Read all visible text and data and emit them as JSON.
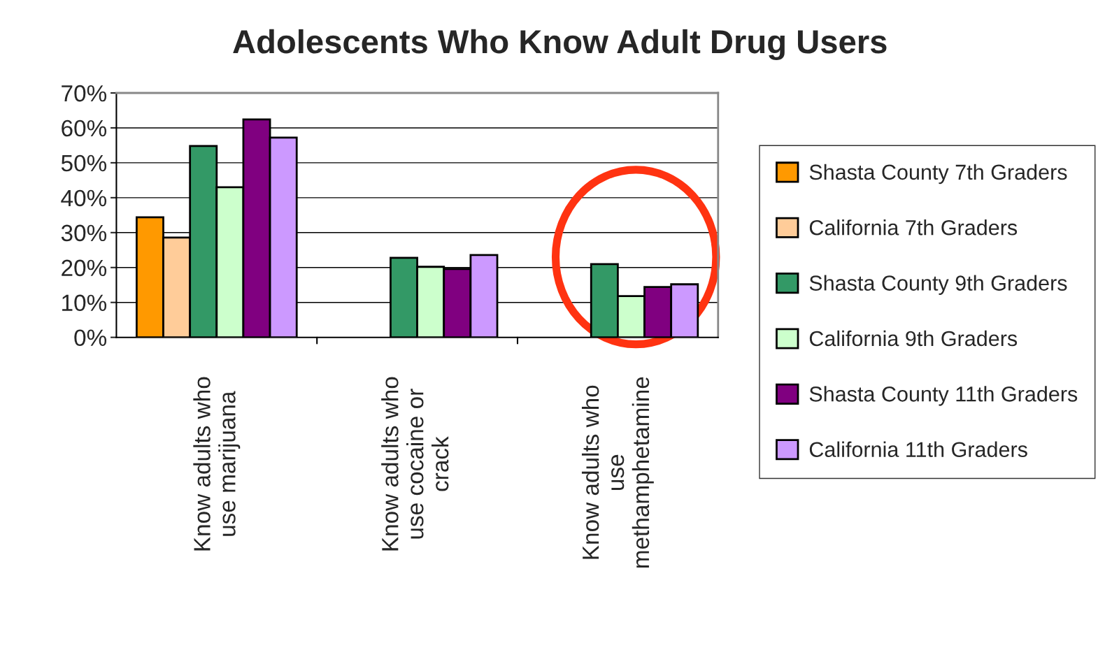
{
  "chart_data": {
    "type": "bar",
    "title": "Adolescents Who Know Adult Drug Users",
    "categories": [
      "Know adults who use marijuana",
      "Know adults who use cocaine or crack",
      "Know adults who use methamphetamine"
    ],
    "series": [
      {
        "name": "Shasta County 7th Graders",
        "color": "#ff9900",
        "values": [
          34.4,
          null,
          null
        ]
      },
      {
        "name": "California 7th Graders",
        "color": "#ffcc99",
        "values": [
          28.6,
          null,
          null
        ]
      },
      {
        "name": "Shasta County 9th Graders",
        "color": "#339966",
        "values": [
          54.8,
          22.8,
          21.0
        ]
      },
      {
        "name": "California 9th Graders",
        "color": "#ccffcc",
        "values": [
          43.0,
          20.2,
          11.8
        ]
      },
      {
        "name": "Shasta County 11th Graders",
        "color": "#800080",
        "values": [
          62.4,
          19.6,
          14.4
        ]
      },
      {
        "name": "California 11th Graders",
        "color": "#cc99ff",
        "values": [
          57.2,
          23.6,
          15.2
        ]
      }
    ],
    "ylim": [
      0,
      70
    ],
    "yticks": [
      {
        "value": 0,
        "label": "0%"
      },
      {
        "value": 10,
        "label": "10%"
      },
      {
        "value": 20,
        "label": "20%"
      },
      {
        "value": 30,
        "label": "30%"
      },
      {
        "value": 40,
        "label": "40%"
      },
      {
        "value": 50,
        "label": "50%"
      },
      {
        "value": 60,
        "label": "60%"
      },
      {
        "value": 70,
        "label": "70%"
      }
    ],
    "grid": "y",
    "legend": "right"
  }
}
